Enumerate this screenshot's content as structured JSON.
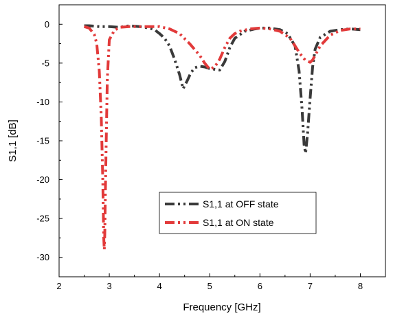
{
  "chart_data": {
    "type": "line",
    "title": "",
    "xlabel": "Frequency [GHz]",
    "ylabel": "S1,1 [dB]",
    "xlim": [
      2,
      8.5
    ],
    "ylim": [
      -32.5,
      2.5
    ],
    "xticks": [
      2,
      3,
      4,
      5,
      6,
      7,
      8
    ],
    "yticks": [
      0,
      -5,
      -10,
      -15,
      -20,
      -25,
      -30
    ],
    "xtick_labels": [
      "2",
      "3",
      "4",
      "5",
      "6",
      "7",
      "8"
    ],
    "ytick_labels": [
      "0",
      "-5",
      "-10",
      "-15",
      "-20",
      "-25",
      "-30"
    ],
    "grid": false,
    "legend_position": "lower-center",
    "series": [
      {
        "name": "S1,1 at OFF state",
        "color": "#3a3a3a",
        "line_style": "dash-dot-dot",
        "x": [
          2.5,
          2.6,
          2.8,
          3.0,
          3.2,
          3.3,
          3.4,
          3.6,
          3.8,
          3.9,
          4.0,
          4.1,
          4.2,
          4.3,
          4.4,
          4.47,
          4.55,
          4.62,
          4.7,
          4.8,
          4.9,
          5.0,
          5.1,
          5.2,
          5.3,
          5.4,
          5.5,
          5.7,
          5.9,
          6.0,
          6.2,
          6.4,
          6.55,
          6.7,
          6.78,
          6.84,
          6.88,
          6.91,
          6.95,
          7.0,
          7.05,
          7.1,
          7.2,
          7.4,
          7.6,
          7.8,
          8.0
        ],
        "y": [
          -0.2,
          -0.2,
          -0.3,
          -0.3,
          -0.4,
          -0.3,
          -0.2,
          -0.3,
          -0.5,
          -0.7,
          -1.2,
          -1.8,
          -2.8,
          -4.5,
          -6.5,
          -8.3,
          -7.3,
          -6.3,
          -5.6,
          -5.4,
          -5.5,
          -5.7,
          -5.8,
          -5.9,
          -4.8,
          -3.0,
          -1.8,
          -0.9,
          -0.6,
          -0.5,
          -0.5,
          -0.7,
          -1.2,
          -2.8,
          -6.0,
          -11.0,
          -15.5,
          -16.6,
          -14.0,
          -9.5,
          -5.5,
          -3.2,
          -1.7,
          -0.9,
          -0.7,
          -0.6,
          -0.7
        ]
      },
      {
        "name": "S1,1 at ON state",
        "color": "#e23a3a",
        "line_style": "dash-dot-dot",
        "x": [
          2.5,
          2.6,
          2.7,
          2.75,
          2.8,
          2.84,
          2.87,
          2.89,
          2.9,
          2.91,
          2.93,
          2.96,
          3.0,
          3.1,
          3.2,
          3.4,
          3.6,
          3.8,
          4.0,
          4.2,
          4.4,
          4.6,
          4.8,
          4.9,
          5.0,
          5.1,
          5.2,
          5.3,
          5.4,
          5.5,
          5.6,
          5.8,
          6.0,
          6.2,
          6.4,
          6.6,
          6.7,
          6.8,
          6.9,
          7.0,
          7.05,
          7.1,
          7.2,
          7.4,
          7.6,
          7.8,
          8.0
        ],
        "y": [
          -0.3,
          -0.5,
          -1.3,
          -2.5,
          -6.0,
          -12.0,
          -20.0,
          -27.5,
          -29.0,
          -27.0,
          -18.0,
          -7.0,
          -2.0,
          -0.8,
          -0.4,
          -0.3,
          -0.3,
          -0.3,
          -0.3,
          -0.6,
          -1.2,
          -2.5,
          -4.0,
          -5.0,
          -5.8,
          -5.5,
          -4.5,
          -3.0,
          -1.8,
          -1.2,
          -0.9,
          -0.6,
          -0.5,
          -0.6,
          -0.9,
          -1.8,
          -2.8,
          -3.8,
          -4.6,
          -4.9,
          -4.6,
          -4.0,
          -2.8,
          -1.4,
          -0.8,
          -0.6,
          -0.6
        ]
      }
    ]
  }
}
